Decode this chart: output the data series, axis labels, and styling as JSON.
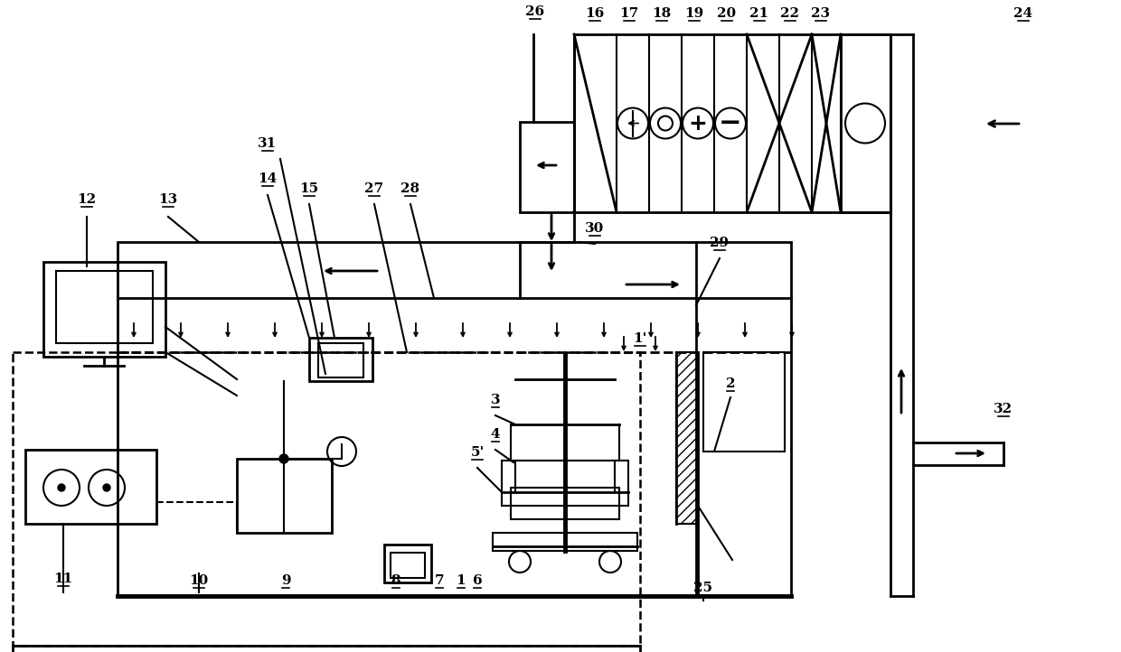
{
  "bg_color": "#ffffff",
  "line_color": "#000000",
  "label_fontsize": 11
}
